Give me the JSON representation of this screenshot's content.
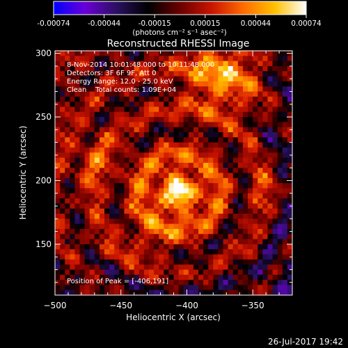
{
  "colorbar": {
    "ticks": [
      "-0.00074",
      "-0.00044",
      "-0.00015",
      "0.00015",
      "0.00044",
      "0.00074"
    ],
    "unit_label": "(photons cm⁻² s⁻¹ asec⁻²)",
    "colors": [
      "#0000ff",
      "#6a00d8",
      "#2a1060",
      "#000000",
      "#6a0000",
      "#c81400",
      "#ff6a00",
      "#ffc000",
      "#ffffff"
    ]
  },
  "chart_data": {
    "type": "heatmap",
    "title": "Reconstructed RHESSI Image",
    "xlabel": "Heliocentric X (arcsec)",
    "ylabel": "Heliocentric Y (arcsec)",
    "xlim": [
      -500,
      -320
    ],
    "ylim": [
      110,
      302
    ],
    "xticks": [
      -500,
      -450,
      -400,
      -350
    ],
    "xtick_labels": [
      "−500",
      "−450",
      "−400",
      "−350"
    ],
    "yticks": [
      150,
      200,
      250,
      300
    ],
    "ytick_labels": [
      "150",
      "200",
      "250",
      "300"
    ],
    "value_range": [
      -0.00074,
      0.00074
    ],
    "peak": [
      -406,
      191
    ],
    "annotations": [
      "8-Nov-2014 10:01:48.000 to 10:11:48.000",
      "Detectors: 3F 6F 9F, Att 0",
      "Energy Range: 12.0 - 25.0 keV",
      "Clean    Total counts: 1.09E+04"
    ],
    "peak_label": "Position of Peak = [-406,191]"
  },
  "footer": {
    "timestamp": "26-Jul-2017 19:42"
  }
}
